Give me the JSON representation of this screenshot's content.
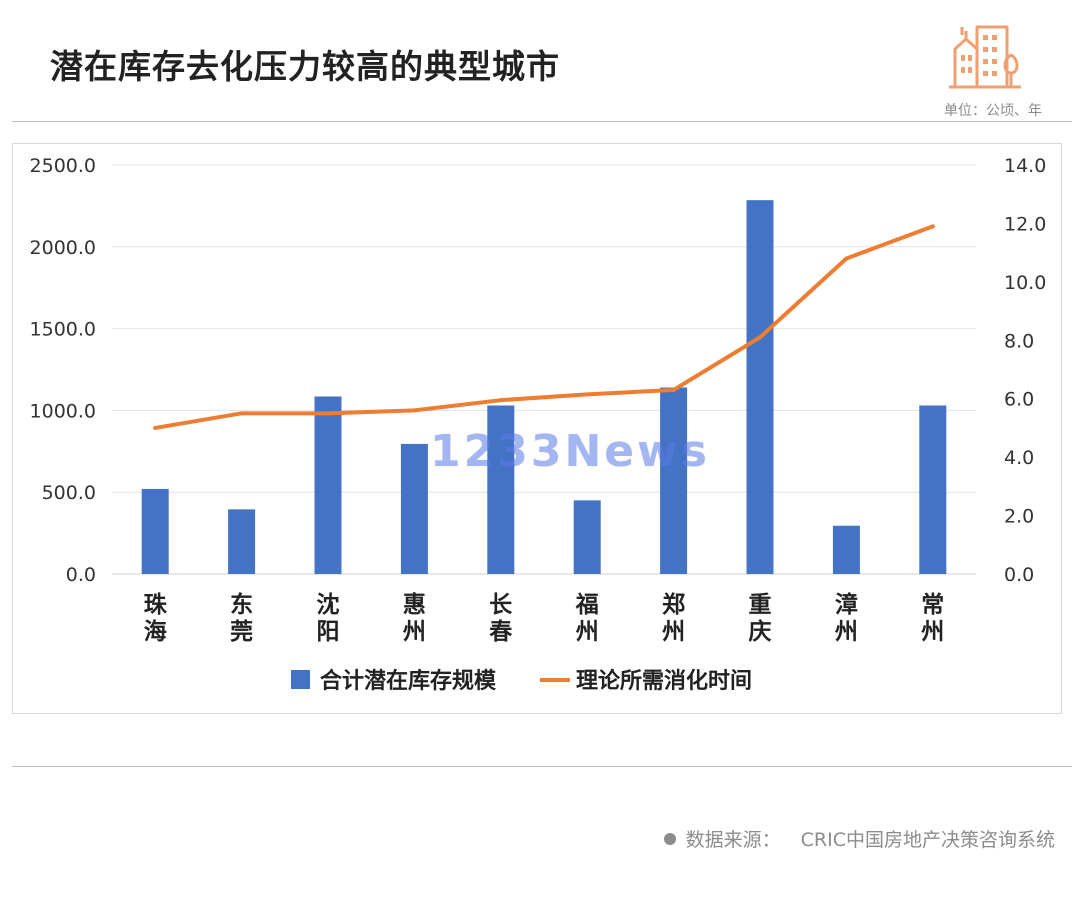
{
  "title": "潜在库存去化压力较高的典型城市",
  "unit": "单位：公顷、年",
  "source": {
    "label": "数据来源：",
    "value": "CRIC中国房地产决策咨询系统"
  },
  "watermark": "1233News",
  "icon": "building-icon",
  "colors": {
    "bar": "#4472C4",
    "line": "#ED7D31",
    "icon": "#F0A070"
  },
  "chart_data": {
    "type": "bar",
    "categories": [
      "珠海",
      "东莞",
      "沈阳",
      "惠州",
      "长春",
      "福州",
      "郑州",
      "重庆",
      "漳州",
      "常州"
    ],
    "series": [
      {
        "name": "合计潜在库存规模",
        "type": "bar",
        "axis": "left",
        "values": [
          520,
          395,
          1085,
          795,
          1030,
          450,
          1140,
          2285,
          295,
          1030
        ]
      },
      {
        "name": "理论所需消化时间",
        "type": "line",
        "axis": "right",
        "values": [
          5.0,
          5.5,
          5.5,
          5.6,
          5.95,
          6.15,
          6.3,
          8.1,
          10.8,
          11.9
        ]
      }
    ],
    "y_left": {
      "ylim": [
        0,
        2500
      ],
      "ticks": [
        "0.0",
        "500.0",
        "1000.0",
        "1500.0",
        "2000.0",
        "2500.0"
      ]
    },
    "y_right": {
      "ylim": [
        0,
        14
      ],
      "ticks": [
        "0.0",
        "2.0",
        "4.0",
        "6.0",
        "8.0",
        "10.0",
        "12.0",
        "14.0"
      ]
    },
    "grid": true,
    "legend_position": "bottom"
  }
}
